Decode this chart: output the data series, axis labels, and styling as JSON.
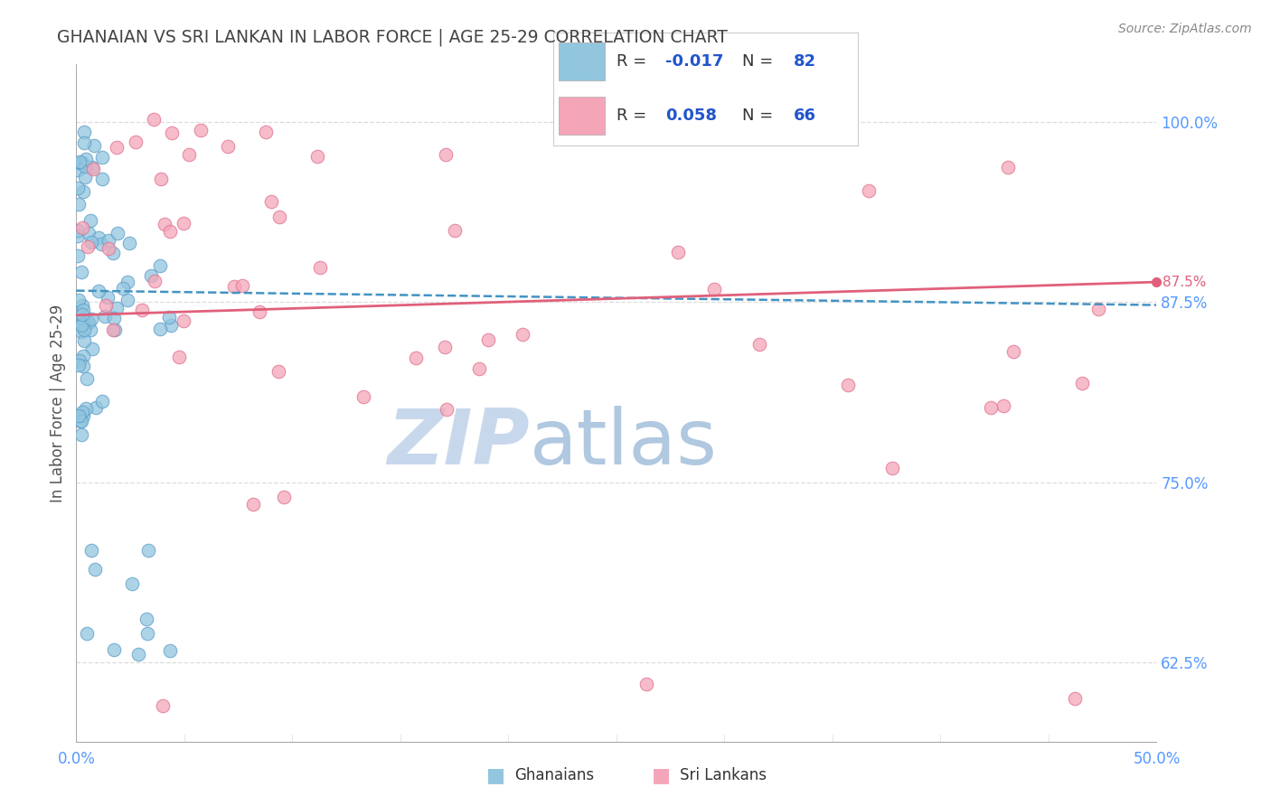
{
  "title": "GHANAIAN VS SRI LANKAN IN LABOR FORCE | AGE 25-29 CORRELATION CHART",
  "source_text": "Source: ZipAtlas.com",
  "xlabel_ghanaian": "Ghanaians",
  "xlabel_srilankan": "Sri Lankans",
  "ylabel": "In Labor Force | Age 25-29",
  "xlim": [
    0.0,
    0.5
  ],
  "ylim": [
    0.57,
    1.04
  ],
  "ytick_positions": [
    0.625,
    0.75,
    0.875,
    1.0
  ],
  "ytick_labels": [
    "62.5%",
    "75.0%",
    "87.5%",
    "100.0%"
  ],
  "ghanaian_R": "-0.017",
  "ghanaian_N": "82",
  "srilankan_R": "0.058",
  "srilankan_N": "66",
  "blue_color": "#92c5de",
  "blue_edge_color": "#5b9ec9",
  "pink_color": "#f4a6b8",
  "pink_edge_color": "#e07090",
  "blue_line_color": "#4393c3",
  "pink_line_color": "#e0607a",
  "watermark_zip": "ZIP",
  "watermark_atlas": "atlas",
  "watermark_color": "#c8d8ec",
  "background_color": "#ffffff",
  "grid_color": "#cccccc",
  "title_color": "#444444",
  "source_color": "#888888",
  "right_axis_color": "#5599ff",
  "legend_R_color": "#2255cc",
  "legend_text_color": "#333333"
}
